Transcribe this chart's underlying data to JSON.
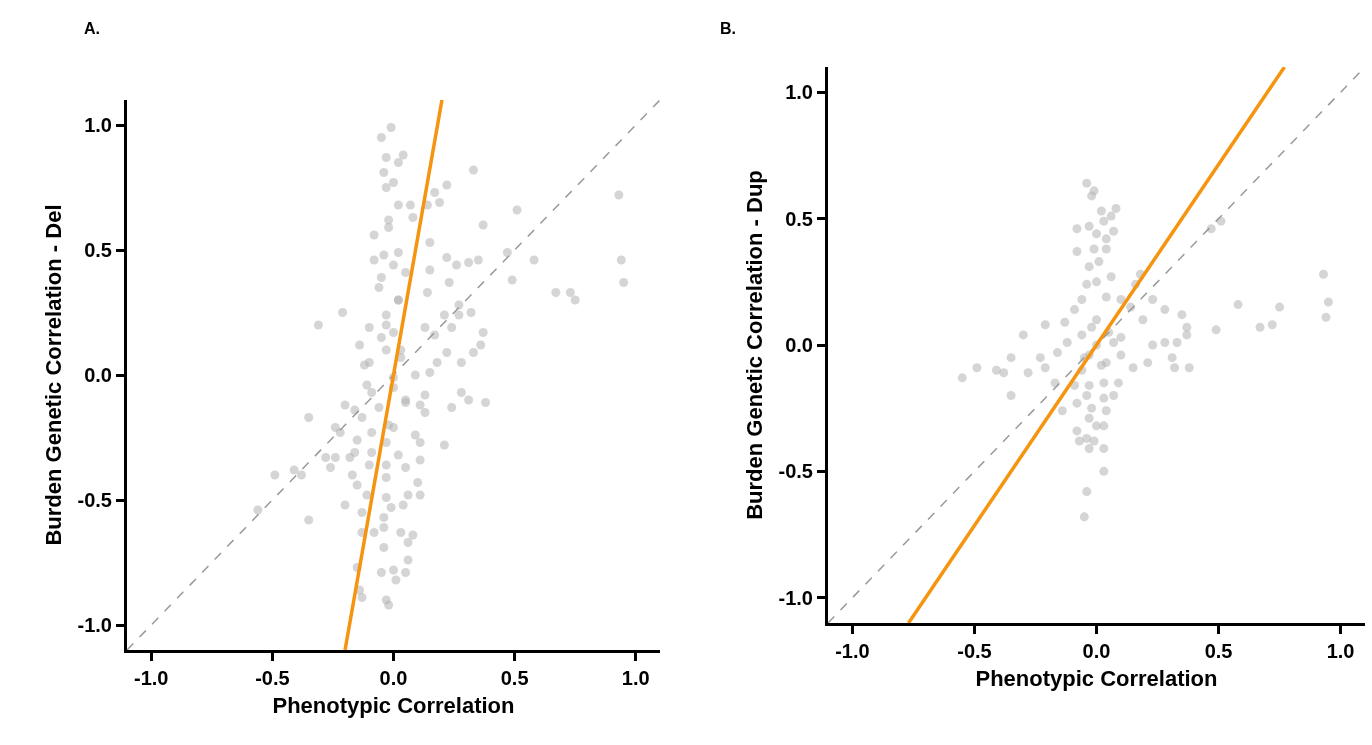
{
  "chart_data": [
    {
      "type": "scatter",
      "title": "A.",
      "xlabel": "Phenotypic Correlation",
      "ylabel": "Burden Genetic Correlation - Del",
      "xlim": [
        -1.1,
        1.1
      ],
      "ylim": [
        -1.1,
        1.1
      ],
      "xticks": [
        {
          "value": -1,
          "label": "-1.0"
        },
        {
          "value": -0.5,
          "label": "-0.5"
        },
        {
          "value": 0,
          "label": "0.0"
        },
        {
          "value": 0.5,
          "label": "0.5"
        },
        {
          "value": 1,
          "label": "1.0"
        }
      ],
      "yticks": [
        {
          "value": -1,
          "label": "-1.0"
        },
        {
          "value": -0.5,
          "label": "-0.5"
        },
        {
          "value": 0,
          "label": "0.0"
        },
        {
          "value": 0.5,
          "label": "0.5"
        },
        {
          "value": 1,
          "label": "1.0"
        }
      ],
      "series": [
        {
          "type": "scatter",
          "marker": "circle",
          "color": "#b3b3b3",
          "x": [
            -0.01,
            -0.05,
            -0.03,
            0.04,
            0.02,
            -0.04,
            0,
            -0.03,
            0.33,
            0.22,
            0.17,
            0.19,
            0.14,
            0.07,
            0.02,
            0.51,
            0.93,
            0.37,
            0.08,
            -0.02,
            -0.08,
            -0.02,
            0.15,
            0.47,
            0.58,
            0.94,
            0.95,
            0.49,
            0.67,
            0.73,
            0.75,
            0.22,
            0.35,
            0.26,
            0.31,
            -0.08,
            -0.04,
            0.02,
            0,
            -0.05,
            -0.06,
            0.05,
            0.15,
            0.23,
            0.14,
            0.27,
            0.32,
            0.27,
            -0.21,
            -0.31,
            0.21,
            0.37,
            0.36,
            0.33,
            0.28,
            0.22,
            0.24,
            0.17,
            0.13,
            -0.1,
            -0.14,
            -0.12,
            -0.03,
            0.02,
            0,
            -0.03,
            0.03,
            0,
            0.09,
            0.15,
            0.18,
            0.28,
            0.31,
            0.38,
            0.24,
            0.13,
            0.11,
            0.13,
            -0.11,
            -0.09,
            -0.2,
            -0.16,
            -0.13,
            -0.06,
            0.05,
            -0.35,
            -0.24,
            -0.22,
            -0.15,
            -0.09,
            0,
            0.09,
            0.11,
            0.21,
            -0.03,
            -0.09,
            0.02,
            0.11,
            -0.28,
            -0.24,
            -0.26,
            -0.18,
            -0.16,
            -0.1,
            -0.03,
            0.05,
            -0.41,
            -0.38,
            -0.49,
            -0.17,
            -0.15,
            -0.03,
            0.1,
            0.11,
            0.06,
            -0.11,
            -0.03,
            -0.01,
            0.04,
            -0.2,
            -0.13,
            -0.04,
            -0.56,
            -0.35,
            -0.13,
            -0.08,
            -0.04,
            0.03,
            0.08,
            0.06,
            -0.04,
            0.06,
            -0.15,
            -0.05,
            0,
            0.05,
            0.01,
            -0.14,
            -0.13,
            -0.03,
            -0.02,
            -0.1,
            0,
            -0.03,
            0.02,
            -0.02,
            0.03,
            -0.05,
            0.05
          ],
          "values": [
            0.99,
            0.95,
            0.87,
            0.88,
            0.85,
            0.81,
            0.77,
            0.75,
            0.82,
            0.76,
            0.73,
            0.69,
            0.68,
            0.68,
            0.68,
            0.66,
            0.72,
            0.6,
            0.63,
            0.62,
            0.56,
            0.59,
            0.53,
            0.49,
            0.46,
            0.46,
            0.37,
            0.38,
            0.33,
            0.33,
            0.3,
            0.47,
            0.46,
            0.44,
            0.45,
            0.46,
            0.48,
            0.49,
            0.44,
            0.39,
            0.35,
            0.41,
            0.42,
            0.37,
            0.33,
            0.28,
            0.25,
            0.24,
            0.25,
            0.2,
            0.24,
            0.17,
            0.12,
            0.09,
            0.05,
            0.09,
            0.19,
            0.16,
            0.19,
            0.19,
            0.12,
            0.04,
            0.24,
            0.3,
            0.17,
            0.1,
            0.07,
            -0.01,
            0,
            0.01,
            0.05,
            -0.07,
            -0.1,
            -0.11,
            -0.13,
            -0.08,
            -0.12,
            -0.15,
            -0.04,
            -0.07,
            -0.12,
            -0.14,
            -0.17,
            -0.13,
            -0.11,
            -0.17,
            -0.21,
            -0.23,
            -0.26,
            -0.23,
            -0.21,
            -0.24,
            -0.27,
            -0.28,
            -0.27,
            -0.31,
            -0.32,
            -0.34,
            -0.33,
            -0.33,
            -0.37,
            -0.33,
            -0.31,
            -0.36,
            -0.36,
            -0.37,
            -0.38,
            -0.4,
            -0.4,
            -0.4,
            -0.44,
            -0.41,
            -0.43,
            -0.48,
            -0.48,
            -0.48,
            -0.49,
            -0.53,
            -0.52,
            -0.52,
            -0.55,
            -0.57,
            -0.54,
            -0.58,
            -0.63,
            -0.63,
            -0.61,
            -0.63,
            -0.64,
            -0.67,
            -0.69,
            -0.74,
            -0.77,
            -0.79,
            -0.78,
            -0.79,
            -0.82,
            -0.86,
            -0.89,
            -0.9,
            -0.92,
            0.05,
            -0.05,
            0.2,
            0.3,
            -0.2,
            0.1,
            0.15,
            -0.1
          ]
        },
        {
          "type": "line",
          "color": "#999999",
          "line_style": "dashed",
          "x": [
            -1.1,
            1.1
          ],
          "values": [
            -1.1,
            1.1
          ]
        },
        {
          "type": "line",
          "color": "#f5940f",
          "line_style": "solid",
          "x": [
            -0.2,
            0.2
          ],
          "values": [
            -1.1,
            1.1
          ]
        }
      ]
    },
    {
      "type": "scatter",
      "title": "B.",
      "xlabel": "Phenotypic Correlation",
      "ylabel": "Burden Genetic Correlation - Dup",
      "xlim": [
        -1.1,
        1.1
      ],
      "ylim": [
        -1.1,
        1.1
      ],
      "xticks": [
        {
          "value": -1,
          "label": "-1.0"
        },
        {
          "value": -0.5,
          "label": "-0.5"
        },
        {
          "value": 0,
          "label": "0.0"
        },
        {
          "value": 0.5,
          "label": "0.5"
        },
        {
          "value": 1,
          "label": "1.0"
        }
      ],
      "yticks": [
        {
          "value": -1,
          "label": "-1.0"
        },
        {
          "value": -0.5,
          "label": "-0.5"
        },
        {
          "value": 0,
          "label": "0.0"
        },
        {
          "value": 0.5,
          "label": "0.5"
        },
        {
          "value": 1,
          "label": "1.0"
        }
      ],
      "series": [
        {
          "type": "scatter",
          "marker": "circle",
          "color": "#b3b3b3",
          "x": [
            -0.04,
            -0.01,
            -0.02,
            0.02,
            0.08,
            0.06,
            0.03,
            -0.03,
            -0.08,
            0.07,
            0,
            0.04,
            -0.01,
            -0.08,
            0.04,
            0.01,
            -0.03,
            0.06,
            0,
            -0.04,
            0.47,
            0.51,
            0.18,
            0.16,
            0.23,
            0.93,
            0.95,
            0.94,
            0.58,
            0.75,
            0.72,
            0.67,
            0.49,
            0.37,
            0.35,
            0.28,
            0.37,
            0.33,
            0.31,
            0.32,
            0.38,
            0.21,
            0.15,
            0.28,
            0.23,
            0.19,
            0.14,
            0.1,
            0.04,
            -0.06,
            -0.09,
            -0.13,
            -0.21,
            -0.3,
            -0.35,
            -0.23,
            -0.49,
            -0.41,
            -0.38,
            -0.55,
            -0.28,
            -0.21,
            -0.16,
            -0.12,
            -0.06,
            0,
            0.07,
            0.1,
            0.04,
            -0.03,
            -0.06,
            -0.17,
            -0.35,
            -0.09,
            -0.03,
            0.03,
            0.09,
            0.07,
            0.03,
            -0.04,
            -0.08,
            -0.14,
            -0.02,
            0.04,
            -0.03,
            0,
            -0.08,
            0.03,
            -0.04,
            -0.07,
            -0.01,
            -0.03,
            0.03,
            0.03,
            -0.04,
            -0.05,
            0,
            0.05,
            -0.05,
            0.02,
            -0.02,
            0.1
          ],
          "values": [
            0.64,
            0.61,
            0.59,
            0.53,
            0.54,
            0.51,
            0.49,
            0.47,
            0.46,
            0.45,
            0.44,
            0.42,
            0.38,
            0.37,
            0.38,
            0.33,
            0.31,
            0.27,
            0.25,
            0.24,
            0.46,
            0.49,
            0.28,
            0.24,
            0.18,
            0.28,
            0.17,
            0.11,
            0.16,
            0.15,
            0.08,
            0.07,
            0.06,
            0.07,
            0.12,
            0.14,
            0.04,
            0.01,
            -0.05,
            -0.09,
            -0.09,
            -0.07,
            -0.09,
            0.01,
            0,
            0.1,
            0.15,
            0.18,
            0.19,
            0.18,
            0.14,
            0.09,
            0.08,
            0.04,
            -0.05,
            -0.05,
            -0.09,
            -0.1,
            -0.11,
            -0.13,
            -0.11,
            -0.09,
            -0.03,
            0.01,
            0.04,
            0.1,
            0.01,
            -0.04,
            -0.07,
            -0.04,
            -0.1,
            -0.15,
            -0.2,
            -0.16,
            -0.16,
            -0.15,
            -0.15,
            -0.2,
            -0.21,
            -0.2,
            -0.23,
            -0.26,
            -0.25,
            -0.26,
            -0.29,
            -0.32,
            -0.34,
            -0.32,
            -0.37,
            -0.38,
            -0.38,
            -0.41,
            -0.41,
            -0.5,
            -0.58,
            -0.68,
            0,
            0.05,
            -0.05,
            -0.08,
            0.07,
            0.03
          ]
        },
        {
          "type": "line",
          "color": "#999999",
          "line_style": "dashed",
          "x": [
            -1.1,
            1.1
          ],
          "values": [
            -1.1,
            1.1
          ]
        },
        {
          "type": "line",
          "color": "#f5940f",
          "line_style": "solid",
          "x": [
            -0.77,
            0.77
          ],
          "values": [
            -1.1,
            1.1
          ]
        }
      ]
    }
  ]
}
